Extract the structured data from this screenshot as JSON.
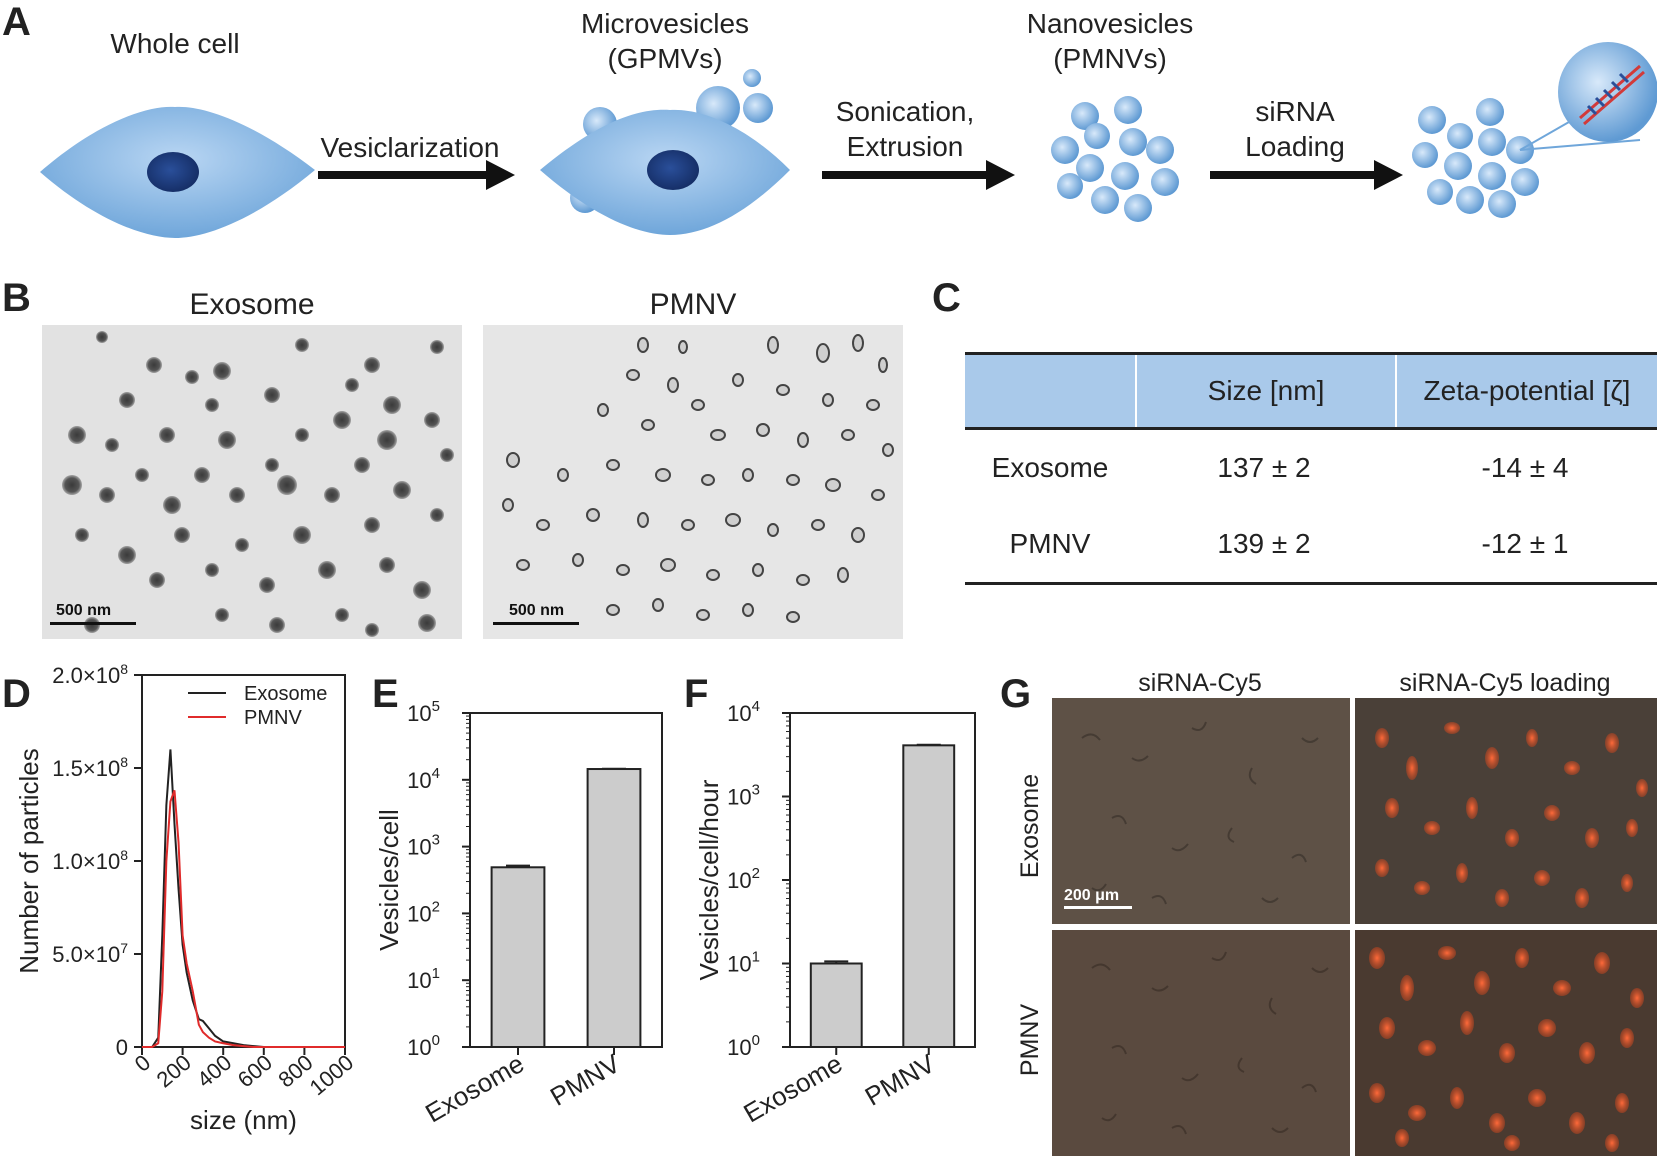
{
  "panels": {
    "A": {
      "label": "A",
      "stages": [
        "Whole cell",
        "Microvesicles\n(GPMVs)",
        "Nanovesicles\n(PMNVs)"
      ],
      "steps": [
        "Vesiclarization",
        "Sonication,\nExtrusion",
        "siRNA\nLoading"
      ]
    },
    "B": {
      "label": "B",
      "images": [
        {
          "title": "Exosome",
          "scale_bar": "500 nm"
        },
        {
          "title": "PMNV",
          "scale_bar": "500 nm"
        }
      ]
    },
    "C": {
      "label": "C",
      "headers": [
        "",
        "Size [nm]",
        "Zeta-potential [ζ]"
      ],
      "rows": [
        [
          "Exosome",
          "137 ± 2",
          "-14 ± 4"
        ],
        [
          "PMNV",
          "139 ± 2",
          "-12 ± 1"
        ]
      ],
      "header_color": "#a9c9ea"
    },
    "D": {
      "label": "D"
    },
    "E": {
      "label": "E"
    },
    "F": {
      "label": "F"
    },
    "G": {
      "label": "G",
      "columns": [
        "siRNA-Cy5",
        "siRNA-Cy5 loading"
      ],
      "rows": [
        "Exosome",
        "PMNV"
      ],
      "scale_bar": "200 μm"
    }
  },
  "chart_data": [
    {
      "panel": "D",
      "type": "line",
      "xlabel": "size (nm)",
      "ylabel": "Number of particles",
      "xlim": [
        0,
        1000
      ],
      "ylim": [
        0,
        200000000
      ],
      "x_ticks": [
        "0",
        "200",
        "400",
        "600",
        "800",
        "1000"
      ],
      "y_ticks": [
        "0",
        "5.0×10",
        "1.0×10",
        "1.5×10",
        "2.0×10"
      ],
      "y_tick_exponents": [
        "",
        "7",
        "8",
        "8",
        "8"
      ],
      "legend_position": "top-right",
      "series": [
        {
          "name": "Exosome",
          "color": "#222222",
          "x": [
            0,
            50,
            80,
            100,
            120,
            140,
            160,
            180,
            200,
            220,
            250,
            280,
            300,
            330,
            360,
            400,
            450,
            500,
            550,
            600,
            700,
            800,
            1000
          ],
          "y": [
            0,
            0,
            5000000,
            60000000,
            130000000,
            160000000,
            120000000,
            85000000,
            55000000,
            40000000,
            25000000,
            15000000,
            14000000,
            10000000,
            6000000,
            3000000,
            2000000,
            1000000,
            500000,
            0,
            0,
            0,
            0
          ]
        },
        {
          "name": "PMNV",
          "color": "#e02b2b",
          "x": [
            0,
            50,
            80,
            100,
            120,
            140,
            160,
            180,
            200,
            220,
            250,
            280,
            300,
            330,
            360,
            400,
            450,
            500,
            550,
            600,
            700,
            800,
            1000
          ],
          "y": [
            0,
            0,
            2000000,
            30000000,
            100000000,
            132000000,
            138000000,
            110000000,
            60000000,
            45000000,
            30000000,
            12000000,
            8000000,
            5000000,
            3000000,
            2000000,
            1000000,
            500000,
            0,
            0,
            0,
            0,
            0
          ]
        }
      ]
    },
    {
      "panel": "E",
      "type": "bar",
      "scale": "log",
      "ylabel": "Vesicles/cell",
      "categories": [
        "Exosome",
        "PMNV"
      ],
      "values": [
        490,
        14500
      ],
      "errors": [
        30,
        150
      ],
      "ylim": [
        1,
        100000
      ],
      "y_ticks": [
        "10",
        "10",
        "10",
        "10",
        "10",
        "10"
      ],
      "y_tick_exponents": [
        "0",
        "1",
        "2",
        "3",
        "4",
        "5"
      ]
    },
    {
      "panel": "F",
      "type": "bar",
      "scale": "log",
      "ylabel": "Vesicles/cell/hour",
      "categories": [
        "Exosome",
        "PMNV"
      ],
      "values": [
        10,
        4100
      ],
      "errors": [
        0.6,
        60
      ],
      "ylim": [
        1,
        10000
      ],
      "y_ticks": [
        "10",
        "10",
        "10",
        "10",
        "10"
      ],
      "y_tick_exponents": [
        "0",
        "1",
        "2",
        "3",
        "4"
      ]
    }
  ]
}
